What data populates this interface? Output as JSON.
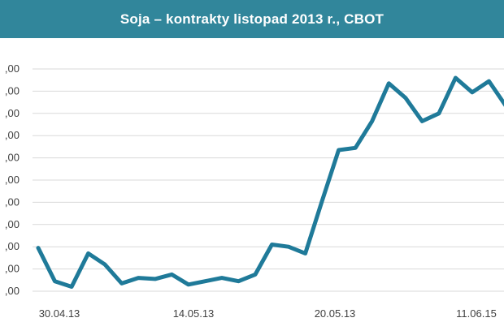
{
  "colors": {
    "title_bar": "#31869b",
    "title_text": "#ffffff",
    "line": "#1f7a99",
    "gridline": "#d9d9d9",
    "axis_text": "#404040"
  },
  "chart_data": {
    "type": "line",
    "title": "Soja – kontrakty listopad 2013 r., CBOT",
    "grid": true,
    "legend": "none",
    "y_tick_labels": [
      ",00",
      ",00",
      ",00",
      ",00",
      ",00",
      ",00",
      ",00",
      ",00",
      ",00",
      ",00",
      ",00"
    ],
    "x_tick_labels": [
      "30.04.13",
      "14.05.13",
      "20.05.13",
      "11.06.15"
    ],
    "ylim": [
      0,
      10
    ],
    "series": [
      {
        "values": [
          1.95,
          0.45,
          0.2,
          1.7,
          1.2,
          0.35,
          0.6,
          0.55,
          0.75,
          0.3,
          0.45,
          0.6,
          0.45,
          0.75,
          2.1,
          2.0,
          1.7,
          4.05,
          6.35,
          6.45,
          7.65,
          9.35,
          8.7,
          7.65,
          8.0,
          9.6,
          8.95,
          9.45,
          8.35
        ]
      }
    ]
  }
}
